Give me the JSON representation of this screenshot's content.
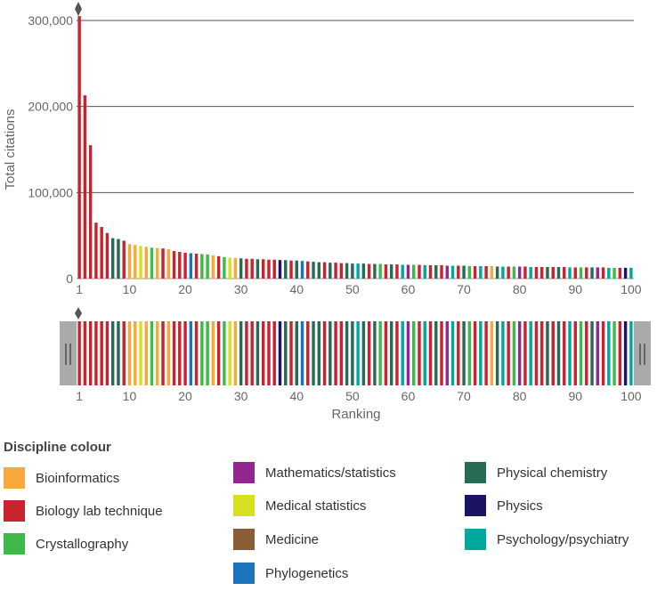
{
  "chart_data": {
    "type": "bar",
    "title": "",
    "xlabel": "Ranking",
    "ylabel": "Total citations",
    "ylim": [
      0,
      300000
    ],
    "y_ticks": [
      0,
      100000,
      200000,
      300000
    ],
    "y_tick_labels": [
      "0",
      "100,000",
      "200,000",
      "300,000"
    ],
    "x_ticks": [
      1,
      10,
      20,
      30,
      40,
      50,
      60,
      70,
      80,
      90,
      100
    ],
    "grid": true,
    "legend_title": "Discipline colour",
    "legend": [
      {
        "key": "bio",
        "label": "Bioinformatics",
        "color": "#F8A93C"
      },
      {
        "key": "lab",
        "label": "Biology lab technique",
        "color": "#C8232E"
      },
      {
        "key": "cry",
        "label": "Crystallography",
        "color": "#3FB94A"
      },
      {
        "key": "mat",
        "label": "Mathematics/statistics",
        "color": "#92278F"
      },
      {
        "key": "med",
        "label": "Medical statistics",
        "color": "#D7DF23"
      },
      {
        "key": "mdc",
        "label": "Medicine",
        "color": "#8B5E34"
      },
      {
        "key": "phy",
        "label": "Phylogenetics",
        "color": "#1C75BC"
      },
      {
        "key": "pch",
        "label": "Physical chemistry",
        "color": "#276A55"
      },
      {
        "key": "phs",
        "label": "Physics",
        "color": "#1B1464"
      },
      {
        "key": "psy",
        "label": "Psychology/psychiatry",
        "color": "#00A99D"
      }
    ],
    "rankings": [
      1,
      2,
      3,
      4,
      5,
      6,
      7,
      8,
      9,
      10,
      11,
      12,
      13,
      14,
      15,
      16,
      17,
      18,
      19,
      20,
      21,
      22,
      23,
      24,
      25,
      26,
      27,
      28,
      29,
      30,
      31,
      32,
      33,
      34,
      35,
      36,
      37,
      38,
      39,
      40,
      41,
      42,
      43,
      44,
      45,
      46,
      47,
      48,
      49,
      50,
      51,
      52,
      53,
      54,
      55,
      56,
      57,
      58,
      59,
      60,
      61,
      62,
      63,
      64,
      65,
      66,
      67,
      68,
      69,
      70,
      71,
      72,
      73,
      74,
      75,
      76,
      77,
      78,
      79,
      80,
      81,
      82,
      83,
      84,
      85,
      86,
      87,
      88,
      89,
      90,
      91,
      92,
      93,
      94,
      95,
      96,
      97,
      98,
      99,
      100
    ],
    "values": [
      305000,
      213000,
      155000,
      65000,
      60000,
      53000,
      47000,
      46000,
      44000,
      40000,
      39000,
      38000,
      37000,
      36000,
      35500,
      35000,
      34000,
      32000,
      31000,
      30000,
      29500,
      29000,
      28500,
      28000,
      27000,
      26000,
      25000,
      24500,
      24000,
      23500,
      23000,
      23000,
      22500,
      22500,
      22000,
      22000,
      21500,
      21500,
      21000,
      21000,
      20500,
      20000,
      19500,
      19000,
      19000,
      18500,
      18500,
      18000,
      18000,
      17500,
      17500,
      17500,
      17000,
      17000,
      17000,
      16500,
      16500,
      16500,
      16000,
      16000,
      16000,
      16000,
      15500,
      15500,
      15500,
      15500,
      15000,
      15000,
      15000,
      15000,
      14500,
      14500,
      14500,
      14500,
      14500,
      14000,
      14000,
      14000,
      14000,
      14000,
      14000,
      13500,
      13500,
      13500,
      13500,
      13500,
      13500,
      13500,
      13000,
      13000,
      13000,
      13000,
      13000,
      13000,
      13000,
      12500,
      12500,
      12500,
      12500,
      12500
    ],
    "disciplines": [
      "lab",
      "lab",
      "lab",
      "lab",
      "lab",
      "lab",
      "pch",
      "pch",
      "lab",
      "bio",
      "bio",
      "med",
      "bio",
      "cry",
      "bio",
      "lab",
      "bio",
      "lab",
      "lab",
      "lab",
      "phy",
      "lab",
      "cry",
      "cry",
      "bio",
      "lab",
      "cry",
      "med",
      "bio",
      "pch",
      "lab",
      "lab",
      "pch",
      "lab",
      "lab",
      "lab",
      "phs",
      "pch",
      "lab",
      "pch",
      "phy",
      "lab",
      "pch",
      "pch",
      "lab",
      "pch",
      "lab",
      "lab",
      "pch",
      "pch",
      "psy",
      "pch",
      "lab",
      "pch",
      "cry",
      "lab",
      "pch",
      "lab",
      "psy",
      "mat",
      "cry",
      "lab",
      "psy",
      "lab",
      "pch",
      "lab",
      "mat",
      "psy",
      "lab",
      "pch",
      "cry",
      "lab",
      "psy",
      "lab",
      "bio",
      "pch",
      "psy",
      "lab",
      "cry",
      "mat",
      "lab",
      "psy",
      "lab",
      "lab",
      "pch",
      "lab",
      "pch",
      "lab",
      "psy",
      "lab",
      "cry",
      "lab",
      "pch",
      "mat",
      "lab",
      "psy",
      "cry",
      "lab",
      "phs",
      "psy"
    ]
  }
}
